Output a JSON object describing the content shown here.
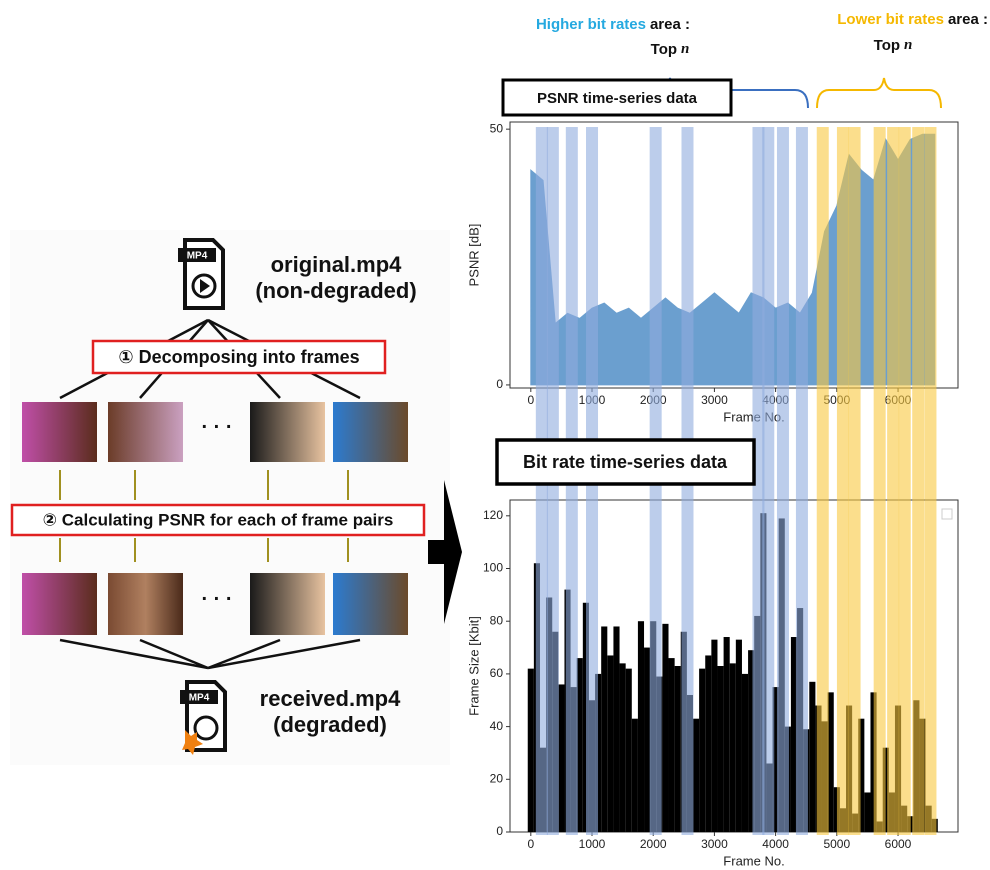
{
  "diagram": {
    "original_file": "original.mp4",
    "original_note": "(non-degraded)",
    "received_file": "received.mp4",
    "received_note": "(degraded)",
    "icon_label": "MP4",
    "step1": "① Decomposing into frames",
    "step2": "② Calculating PSNR for each of frame pairs",
    "ellipsis": "· · ·",
    "psnr_box": "PSNR time-series data",
    "bitrate_box": "Bit rate time-series data",
    "higher_label": "Higher bit rates",
    "lower_label": "Lower bit rates",
    "area_suffix": "area :",
    "top": "Top",
    "n": "n"
  },
  "chart_data": [
    {
      "type": "area",
      "xlabel": "Frame No.",
      "ylabel": "PSNR [dB]",
      "color": "#6b9fcf",
      "x": [
        0,
        200,
        400,
        600,
        800,
        1000,
        1200,
        1400,
        1600,
        1800,
        2000,
        2200,
        2400,
        2600,
        2800,
        3000,
        3200,
        3400,
        3600,
        3800,
        4000,
        4200,
        4400,
        4600,
        4800,
        5000,
        5200,
        5400,
        5600,
        5800,
        6000,
        6200,
        6400,
        6600
      ],
      "values": [
        42,
        40,
        12,
        14,
        13,
        15,
        16,
        14,
        15,
        13,
        15,
        17,
        15,
        14,
        16,
        18,
        16,
        14,
        18,
        17,
        15,
        16,
        14,
        18,
        30,
        35,
        45,
        42,
        40,
        48,
        44,
        48,
        49,
        49
      ],
      "xlim": [
        -340,
        6980
      ],
      "ylim": [
        -0.6,
        51.4
      ],
      "xticks": [
        0,
        1000,
        2000,
        3000,
        4000,
        5000,
        6000
      ],
      "yticks": [
        0,
        50
      ]
    },
    {
      "type": "bar",
      "xlabel": "Frame No.",
      "ylabel": "Frame Size [Kbit]",
      "color": "#000000",
      "x": [
        0,
        100,
        200,
        300,
        400,
        500,
        600,
        700,
        800,
        900,
        1000,
        1100,
        1200,
        1300,
        1400,
        1500,
        1600,
        1700,
        1800,
        1900,
        2000,
        2100,
        2200,
        2300,
        2400,
        2500,
        2600,
        2700,
        2800,
        2900,
        3000,
        3100,
        3200,
        3300,
        3400,
        3500,
        3600,
        3700,
        3800,
        3900,
        4000,
        4100,
        4200,
        4300,
        4400,
        4500,
        4600,
        4700,
        4800,
        4900,
        5000,
        5100,
        5200,
        5300,
        5400,
        5500,
        5600,
        5700,
        5800,
        5900,
        6000,
        6100,
        6200,
        6300,
        6400,
        6500,
        6600
      ],
      "values": [
        62,
        102,
        32,
        89,
        76,
        56,
        92,
        55,
        66,
        87,
        50,
        60,
        78,
        67,
        78,
        64,
        62,
        43,
        80,
        70,
        80,
        59,
        79,
        66,
        63,
        76,
        52,
        43,
        62,
        67,
        73,
        63,
        74,
        64,
        73,
        60,
        69,
        82,
        121,
        26,
        55,
        119,
        40,
        74,
        85,
        39,
        57,
        48,
        42,
        53,
        17,
        9,
        48,
        7,
        43,
        15,
        53,
        4,
        32,
        15,
        48,
        10,
        6,
        50,
        43,
        10,
        5
      ],
      "xlim": [
        -340,
        6980
      ],
      "ylim": [
        0,
        126
      ],
      "xticks": [
        0,
        1000,
        2000,
        3000,
        4000,
        5000,
        6000
      ],
      "yticks": [
        0,
        20,
        40,
        60,
        80,
        100,
        120
      ],
      "highlights": [
        {
          "color": "#8fabdd",
          "frames": [
            180,
            360,
            670,
            1000,
            2040,
            2560,
            3720,
            3880,
            4120,
            4430
          ]
        },
        {
          "color": "#f8c840",
          "frames": [
            4770,
            5100,
            5290,
            5700,
            5920,
            6110,
            6330,
            6530
          ]
        }
      ]
    }
  ]
}
